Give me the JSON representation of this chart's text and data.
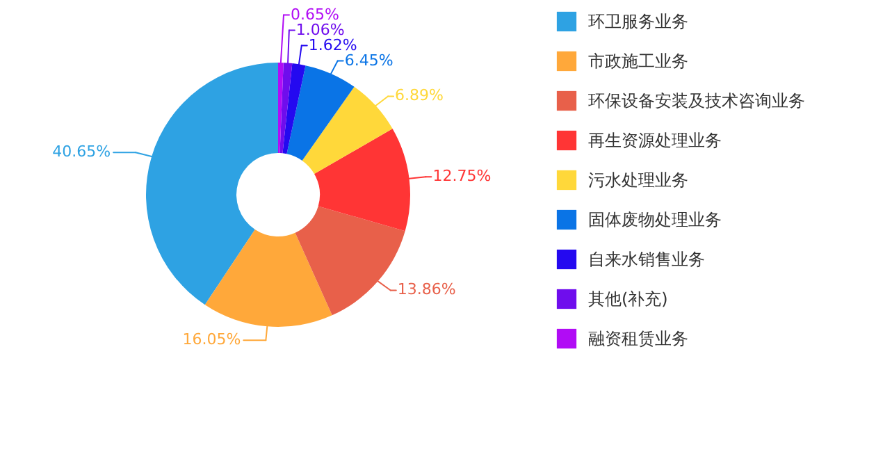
{
  "chart_data": {
    "type": "donut",
    "categories": [
      "环卫服务业务",
      "市政施工业务",
      "环保设备安装及技术咨询业务",
      "再生资源处理业务",
      "污水处理业务",
      "固体废物处理业务",
      "自来水销售业务",
      "其他(补充)",
      "融资租赁业务"
    ],
    "values": [
      40.65,
      16.05,
      13.86,
      12.75,
      6.89,
      6.45,
      1.62,
      1.06,
      0.65
    ],
    "colors": [
      "#2ea2e3",
      "#ffa83a",
      "#e8604a",
      "#ff3535",
      "#ffd83a",
      "#0a74e6",
      "#2409f0",
      "#6f0ded",
      "#b10cf5"
    ],
    "value_labels": [
      "40.65%",
      "16.05%",
      "13.86%",
      "12.75%",
      "6.89%",
      "6.45%",
      "1.62%",
      "1.06%",
      "0.65%"
    ],
    "legend": "right"
  }
}
